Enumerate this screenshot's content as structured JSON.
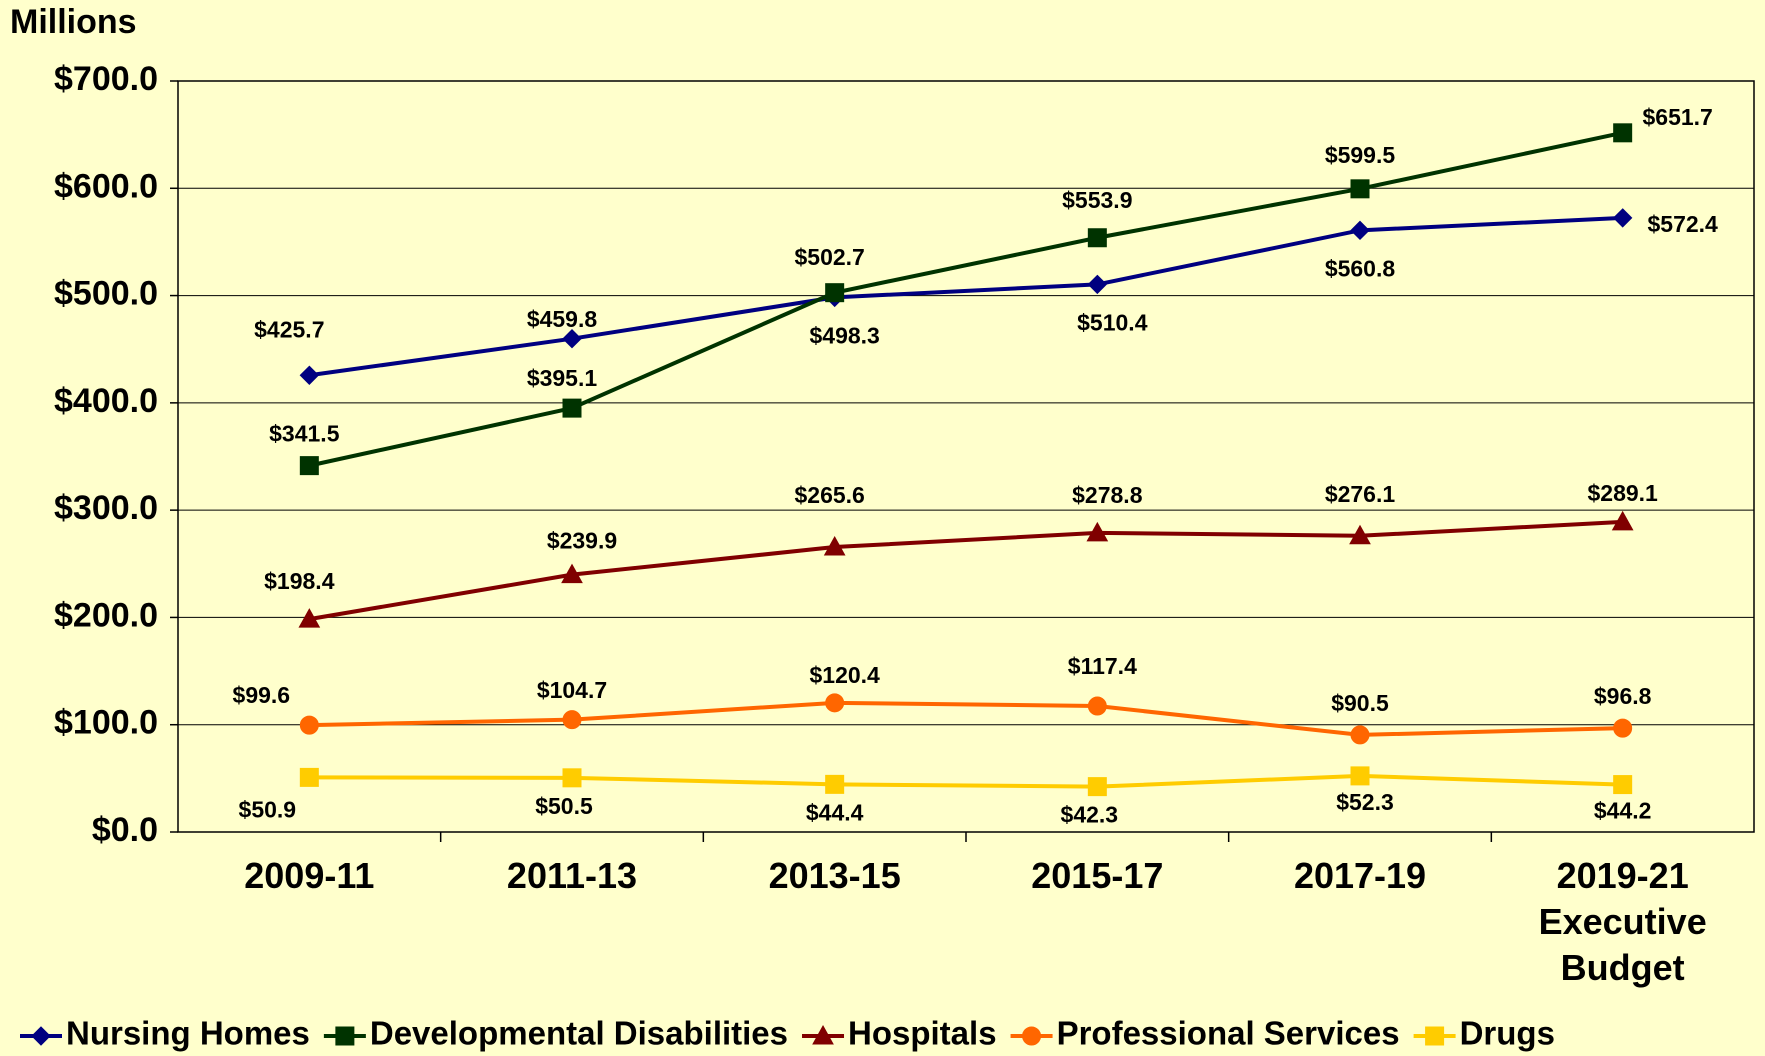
{
  "chart_data": {
    "type": "line",
    "y_label": "Millions",
    "categories": [
      "2009-11",
      "2011-13",
      "2013-15",
      "2015-17",
      "2017-19",
      "2019-21 Executive Budget"
    ],
    "series": [
      {
        "name": "Nursing Homes",
        "color": "#000080",
        "marker": "diamond",
        "values": [
          425.7,
          459.8,
          498.3,
          510.4,
          560.8,
          572.4
        ],
        "value_labels": [
          "$425.7",
          "$459.8",
          "$498.3",
          "$510.4",
          "$560.8",
          "$572.4"
        ]
      },
      {
        "name": "Developmental Disabilities",
        "color": "#003300",
        "marker": "square",
        "values": [
          341.5,
          395.1,
          502.7,
          553.9,
          599.5,
          651.7
        ],
        "value_labels": [
          "$341.5",
          "$395.1",
          "$502.7",
          "$553.9",
          "$599.5",
          "$651.7"
        ]
      },
      {
        "name": "Hospitals",
        "color": "#800000",
        "marker": "triangle",
        "values": [
          198.4,
          239.9,
          265.6,
          278.8,
          276.1,
          289.1
        ],
        "value_labels": [
          "$198.4",
          "$239.9",
          "$265.6",
          "$278.8",
          "$276.1",
          "$289.1"
        ]
      },
      {
        "name": "Professional Services",
        "color": "#ff6600",
        "marker": "circle",
        "values": [
          99.6,
          104.7,
          120.4,
          117.4,
          90.5,
          96.8
        ],
        "value_labels": [
          "$99.6",
          "$104.7",
          "$120.4",
          "$117.4",
          "$90.5",
          "$96.8"
        ]
      },
      {
        "name": "Drugs",
        "color": "#ffcc00",
        "marker": "square",
        "values": [
          50.9,
          50.5,
          44.4,
          42.3,
          52.3,
          44.2
        ],
        "value_labels": [
          "$50.9",
          "$50.5",
          "$44.4",
          "$42.3",
          "$52.3",
          "$44.2"
        ]
      }
    ],
    "ylim": [
      0,
      700
    ],
    "yticks": [
      {
        "value": 0,
        "label": "$0.0"
      },
      {
        "value": 100,
        "label": "$100.0"
      },
      {
        "value": 200,
        "label": "$200.0"
      },
      {
        "value": 300,
        "label": "$300.0"
      },
      {
        "value": 400,
        "label": "$400.0"
      },
      {
        "value": 500,
        "label": "$500.0"
      },
      {
        "value": 600,
        "label": "$600.0"
      },
      {
        "value": 700,
        "label": "$700.0"
      }
    ],
    "grid": true,
    "legend": "bottom"
  }
}
